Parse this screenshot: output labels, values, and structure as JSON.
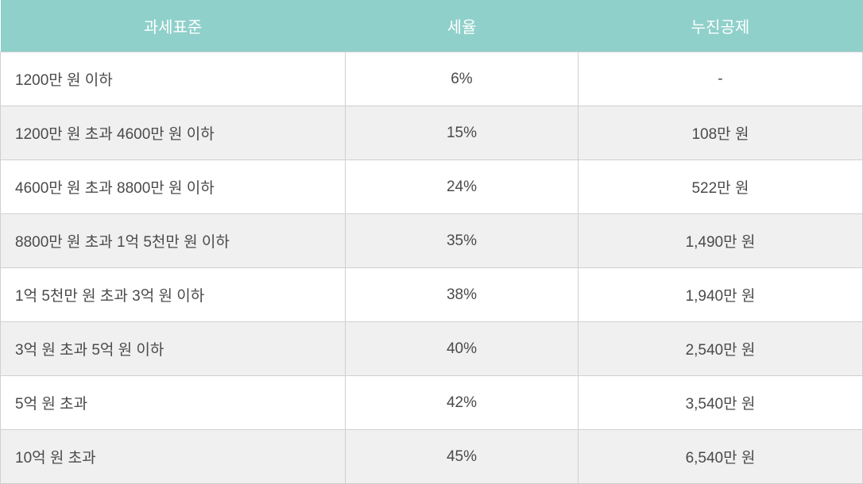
{
  "table": {
    "type": "table",
    "header_bg_color": "#8fd0ca",
    "header_text_color": "#ffffff",
    "row_odd_bg": "#ffffff",
    "row_even_bg": "#f0f0f0",
    "border_color": "#d0d0d0",
    "text_color": "#4a4a4a",
    "font_size": 19,
    "header_font_size": 20,
    "columns": [
      {
        "label": "과세표준",
        "align": "left",
        "width_pct": 40
      },
      {
        "label": "세율",
        "align": "center",
        "width_pct": 27
      },
      {
        "label": "누진공제",
        "align": "center",
        "width_pct": 33
      }
    ],
    "rows": [
      {
        "bracket": "1200만 원 이하",
        "rate": "6%",
        "deduction": "-"
      },
      {
        "bracket": "1200만 원 초과 4600만 원 이하",
        "rate": "15%",
        "deduction": "108만 원"
      },
      {
        "bracket": "4600만 원 초과 8800만 원 이하",
        "rate": "24%",
        "deduction": "522만 원"
      },
      {
        "bracket": "8800만 원 초과 1억 5천만 원 이하",
        "rate": "35%",
        "deduction": "1,490만 원"
      },
      {
        "bracket": "1억 5천만 원 초과 3억 원 이하",
        "rate": "38%",
        "deduction": "1,940만 원"
      },
      {
        "bracket": "3억 원 초과 5억 원 이하",
        "rate": "40%",
        "deduction": "2,540만 원"
      },
      {
        "bracket": "5억 원 초과",
        "rate": "42%",
        "deduction": "3,540만 원"
      },
      {
        "bracket": "10억 원 초과",
        "rate": "45%",
        "deduction": "6,540만 원"
      }
    ]
  }
}
